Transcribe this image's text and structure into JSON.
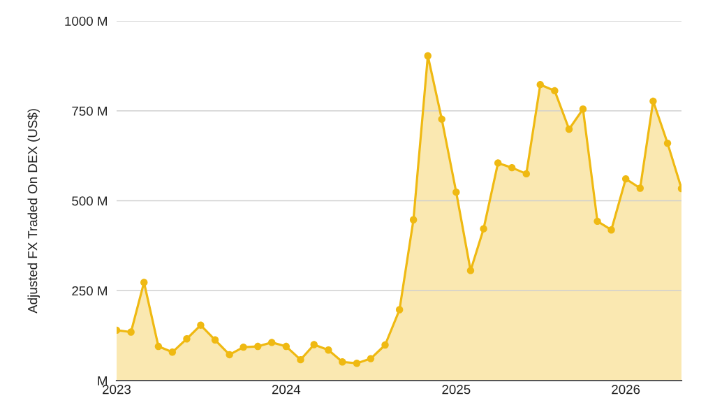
{
  "chart_data": {
    "type": "area",
    "ylabel": "Adjusted FX Traded On DEX (US$)",
    "x": [
      "2023-01",
      "2023-02",
      "2023-03",
      "2023-04",
      "2023-05",
      "2023-06",
      "2023-07",
      "2023-08",
      "2023-09",
      "2023-10",
      "2023-11",
      "2023-12",
      "2024-01",
      "2024-02",
      "2024-03",
      "2024-04",
      "2024-05",
      "2024-06",
      "2024-07",
      "2024-08",
      "2024-09",
      "2024-10",
      "2024-11",
      "2024-12",
      "2025-01",
      "2025-02",
      "2025-03",
      "2025-04",
      "2025-05",
      "2025-06",
      "2025-07",
      "2025-08",
      "2025-09",
      "2025-10",
      "2025-11",
      "2025-12",
      "2026-01",
      "2026-02",
      "2026-03",
      "2026-04",
      "2026-05"
    ],
    "series": [
      {
        "color": "#efb912",
        "values": [
          140,
          135,
          273,
          95,
          79,
          116,
          154,
          113,
          72,
          93,
          95,
          106,
          95,
          58,
          100,
          85,
          52,
          48,
          61,
          99,
          197,
          447,
          903,
          727,
          524,
          306,
          422,
          605,
          592,
          575,
          823,
          806,
          699,
          755,
          443,
          419,
          561,
          535,
          777,
          660,
          534
        ]
      }
    ],
    "xlim": [
      "2023-01",
      "2026-05"
    ],
    "xticks": [
      "2023",
      "2024",
      "2025",
      "2026"
    ],
    "ylim": [
      0,
      1000
    ],
    "yticks": [
      {
        "value": 0,
        "label": "M"
      },
      {
        "value": 250,
        "label": "250 M"
      },
      {
        "value": 500,
        "label": "500 M"
      },
      {
        "value": 750,
        "label": "750 M"
      },
      {
        "value": 1000,
        "label": "1000 M"
      }
    ],
    "grid": "y",
    "marker": "circle"
  }
}
